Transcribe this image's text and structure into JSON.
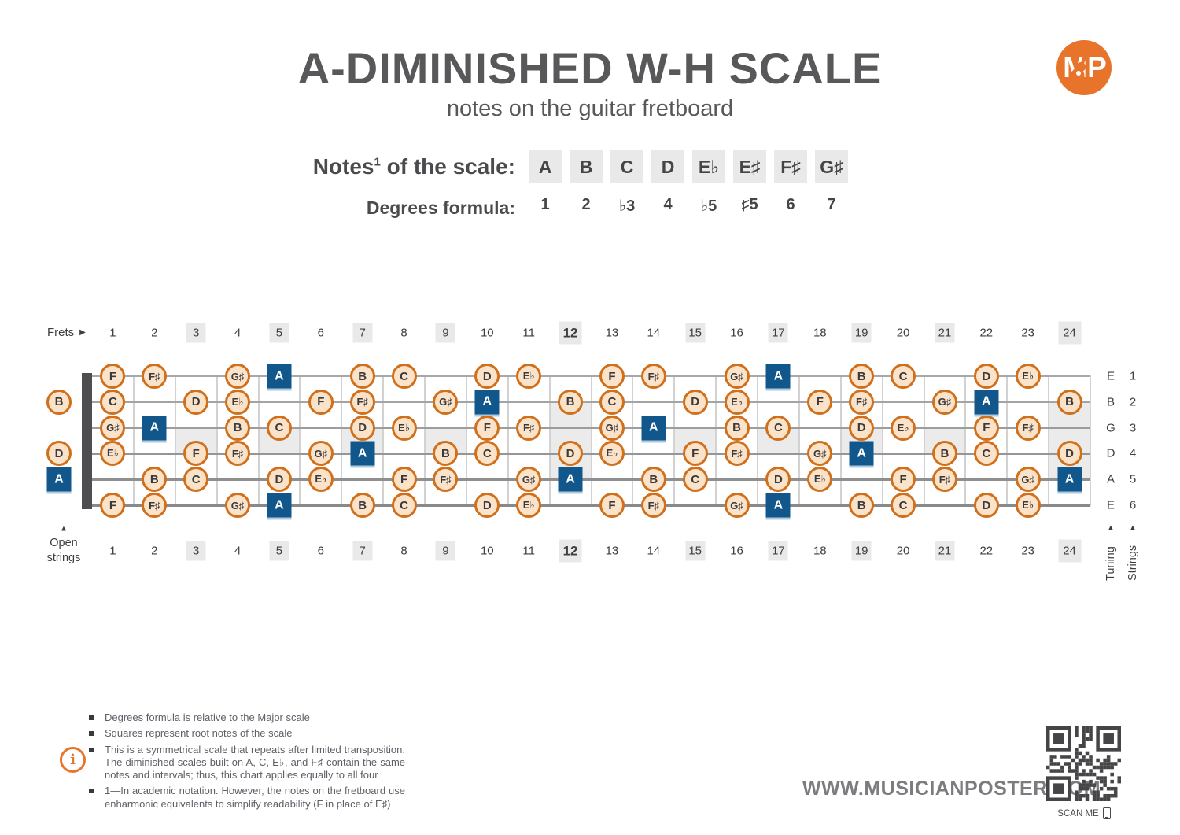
{
  "page": {
    "title": "A-DIMINISHED W-H SCALE",
    "subtitle": "notes on the guitar fretboard"
  },
  "logo": {
    "text": "MP"
  },
  "scale": {
    "notes_label_base": "Notes",
    "notes_label_sup": "1",
    "notes_label_rest": " of the scale:",
    "notes": [
      "A",
      "B",
      "C",
      "D",
      "E♭",
      "E♯",
      "F♯",
      "G♯"
    ],
    "degrees_label": "Degrees formula:",
    "degrees": [
      "1",
      "2",
      "♭3",
      "4",
      "♭5",
      "♯5",
      "6",
      "7"
    ]
  },
  "fretboard": {
    "frets_label": "Frets",
    "fret_count": 24,
    "fret_numbers": [
      1,
      2,
      3,
      4,
      5,
      6,
      7,
      8,
      9,
      10,
      11,
      12,
      13,
      14,
      15,
      16,
      17,
      18,
      19,
      20,
      21,
      22,
      23,
      24
    ],
    "single_marker_frets": [
      3,
      5,
      7,
      9,
      15,
      17,
      19,
      21
    ],
    "double_marker_frets": [
      12,
      24
    ],
    "bold_frets": [
      12
    ],
    "open_strings_label_line1": "Open",
    "open_strings_label_line2": "strings",
    "tuning_axis_label": "Tuning",
    "strings_axis_label": "Strings",
    "strings": [
      {
        "number": 1,
        "tuning": "E",
        "open": null,
        "notes": [
          [
            1,
            "F",
            0
          ],
          [
            2,
            "F♯",
            0
          ],
          [
            4,
            "G♯",
            0
          ],
          [
            5,
            "A",
            1
          ],
          [
            7,
            "B",
            0
          ],
          [
            8,
            "C",
            0
          ],
          [
            10,
            "D",
            0
          ],
          [
            11,
            "E♭",
            0
          ],
          [
            13,
            "F",
            0
          ],
          [
            14,
            "F♯",
            0
          ],
          [
            16,
            "G♯",
            0
          ],
          [
            17,
            "A",
            1
          ],
          [
            19,
            "B",
            0
          ],
          [
            20,
            "C",
            0
          ],
          [
            22,
            "D",
            0
          ],
          [
            23,
            "E♭",
            0
          ]
        ]
      },
      {
        "number": 2,
        "tuning": "B",
        "open": {
          "note": "B",
          "root": 0
        },
        "notes": [
          [
            1,
            "C",
            0
          ],
          [
            3,
            "D",
            0
          ],
          [
            4,
            "E♭",
            0
          ],
          [
            6,
            "F",
            0
          ],
          [
            7,
            "F♯",
            0
          ],
          [
            9,
            "G♯",
            0
          ],
          [
            10,
            "A",
            1
          ],
          [
            12,
            "B",
            0
          ],
          [
            13,
            "C",
            0
          ],
          [
            15,
            "D",
            0
          ],
          [
            16,
            "E♭",
            0
          ],
          [
            18,
            "F",
            0
          ],
          [
            19,
            "F♯",
            0
          ],
          [
            21,
            "G♯",
            0
          ],
          [
            22,
            "A",
            1
          ],
          [
            24,
            "B",
            0
          ]
        ]
      },
      {
        "number": 3,
        "tuning": "G",
        "open": null,
        "notes": [
          [
            1,
            "G♯",
            0
          ],
          [
            2,
            "A",
            1
          ],
          [
            4,
            "B",
            0
          ],
          [
            5,
            "C",
            0
          ],
          [
            7,
            "D",
            0
          ],
          [
            8,
            "E♭",
            0
          ],
          [
            10,
            "F",
            0
          ],
          [
            11,
            "F♯",
            0
          ],
          [
            13,
            "G♯",
            0
          ],
          [
            14,
            "A",
            1
          ],
          [
            16,
            "B",
            0
          ],
          [
            17,
            "C",
            0
          ],
          [
            19,
            "D",
            0
          ],
          [
            20,
            "E♭",
            0
          ],
          [
            22,
            "F",
            0
          ],
          [
            23,
            "F♯",
            0
          ]
        ]
      },
      {
        "number": 4,
        "tuning": "D",
        "open": {
          "note": "D",
          "root": 0
        },
        "notes": [
          [
            1,
            "E♭",
            0
          ],
          [
            3,
            "F",
            0
          ],
          [
            4,
            "F♯",
            0
          ],
          [
            6,
            "G♯",
            0
          ],
          [
            7,
            "A",
            1
          ],
          [
            9,
            "B",
            0
          ],
          [
            10,
            "C",
            0
          ],
          [
            12,
            "D",
            0
          ],
          [
            13,
            "E♭",
            0
          ],
          [
            15,
            "F",
            0
          ],
          [
            16,
            "F♯",
            0
          ],
          [
            18,
            "G♯",
            0
          ],
          [
            19,
            "A",
            1
          ],
          [
            21,
            "B",
            0
          ],
          [
            22,
            "C",
            0
          ],
          [
            24,
            "D",
            0
          ]
        ]
      },
      {
        "number": 5,
        "tuning": "A",
        "open": {
          "note": "A",
          "root": 1
        },
        "notes": [
          [
            2,
            "B",
            0
          ],
          [
            3,
            "C",
            0
          ],
          [
            5,
            "D",
            0
          ],
          [
            6,
            "E♭",
            0
          ],
          [
            8,
            "F",
            0
          ],
          [
            9,
            "F♯",
            0
          ],
          [
            11,
            "G♯",
            0
          ],
          [
            12,
            "A",
            1
          ],
          [
            14,
            "B",
            0
          ],
          [
            15,
            "C",
            0
          ],
          [
            17,
            "D",
            0
          ],
          [
            18,
            "E♭",
            0
          ],
          [
            20,
            "F",
            0
          ],
          [
            21,
            "F♯",
            0
          ],
          [
            23,
            "G♯",
            0
          ],
          [
            24,
            "A",
            1
          ]
        ]
      },
      {
        "number": 6,
        "tuning": "E",
        "open": null,
        "notes": [
          [
            1,
            "F",
            0
          ],
          [
            2,
            "F♯",
            0
          ],
          [
            4,
            "G♯",
            0
          ],
          [
            5,
            "A",
            1
          ],
          [
            7,
            "B",
            0
          ],
          [
            8,
            "C",
            0
          ],
          [
            10,
            "D",
            0
          ],
          [
            11,
            "E♭",
            0
          ],
          [
            13,
            "F",
            0
          ],
          [
            14,
            "F♯",
            0
          ],
          [
            16,
            "G♯",
            0
          ],
          [
            17,
            "A",
            1
          ],
          [
            19,
            "B",
            0
          ],
          [
            20,
            "C",
            0
          ],
          [
            22,
            "D",
            0
          ],
          [
            23,
            "E♭",
            0
          ]
        ]
      }
    ]
  },
  "footer": {
    "info_icon": "i",
    "bullets": [
      "Degrees formula is relative to the Major scale",
      "Squares represent root notes of the scale",
      "This is a symmetrical scale that repeats after limited transposition. The diminished scales built on A, C, E♭, and F♯ contain the same notes and intervals; thus, this chart applies equally to all four",
      "1—In academic notation. However, the notes on the fretboard use enharmonic equivalents to simplify readability (F in place of E♯)"
    ],
    "website": "WWW.MUSICIANPOSTER.COM",
    "scan_me": "SCAN ME"
  },
  "colors": {
    "orange": "#d0701c",
    "note_fill": "#fbe3ca",
    "root_blue": "#11578b",
    "highlight_gray": "#e9e9e9",
    "title_gray": "#58585a",
    "brand_orange": "#e8742b"
  }
}
